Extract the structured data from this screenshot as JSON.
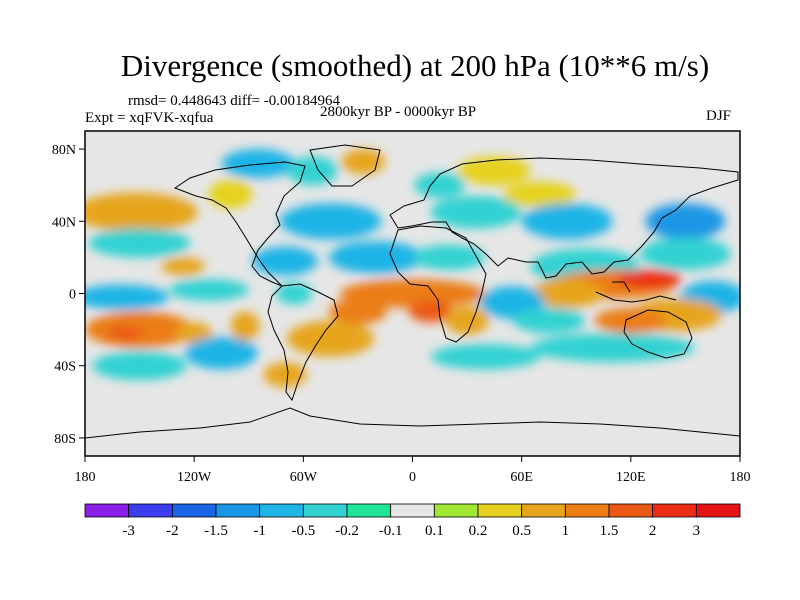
{
  "header": {
    "title": "Divergence (smoothed) at 200 hPa (10**6 m/s)",
    "stats": "rmsd= 0.448643 diff= -0.00184964",
    "period": "2800kyr BP - 0000kyr BP",
    "experiment": "Expt = xqFVK-xqfua",
    "season": "DJF"
  },
  "chart_data": {
    "type": "heatmap",
    "title": "Divergence (smoothed) at 200 hPa (10**6 m/s)",
    "x_ticks": [
      {
        "value": -180,
        "label": "180"
      },
      {
        "value": -120,
        "label": "120W"
      },
      {
        "value": -60,
        "label": "60W"
      },
      {
        "value": 0,
        "label": "0"
      },
      {
        "value": 60,
        "label": "60E"
      },
      {
        "value": 120,
        "label": "120E"
      },
      {
        "value": 180,
        "label": "180"
      }
    ],
    "y_ticks": [
      {
        "value": 80,
        "label": "80N"
      },
      {
        "value": 40,
        "label": "40N"
      },
      {
        "value": 0,
        "label": "0"
      },
      {
        "value": -40,
        "label": "40S"
      },
      {
        "value": -80,
        "label": "80S"
      }
    ],
    "xlim": [
      -180,
      180
    ],
    "ylim": [
      -90,
      90
    ],
    "colorbar": {
      "levels": [
        "-3",
        "-2",
        "-1.5",
        "-1",
        "-0.5",
        "-0.2",
        "-0.1",
        "0.1",
        "0.2",
        "0.5",
        "1",
        "1.5",
        "2",
        "3"
      ],
      "colors": [
        "#8a1ee6",
        "#3c3cf0",
        "#1a64e6",
        "#1a96e6",
        "#1eb4e6",
        "#32d2d2",
        "#1ee696",
        "#e6e6e6",
        "#a0e632",
        "#e6d21e",
        "#e6a51a",
        "#eb7d14",
        "#eb5a14",
        "#eb2d14",
        "#e61414"
      ]
    },
    "anomalies": [
      {
        "lon": -152,
        "lat": 45,
        "rx": 34,
        "ry": 11,
        "value": 0.7
      },
      {
        "lon": -150,
        "lat": 28,
        "rx": 28,
        "ry": 8,
        "value": -0.5
      },
      {
        "lon": -126,
        "lat": 15,
        "rx": 12,
        "ry": 5,
        "value": 0.6
      },
      {
        "lon": -160,
        "lat": -2,
        "rx": 26,
        "ry": 7,
        "value": -0.8
      },
      {
        "lon": -112,
        "lat": 2,
        "rx": 22,
        "ry": 6,
        "value": -0.5
      },
      {
        "lon": -150,
        "lat": -20,
        "rx": 30,
        "ry": 10,
        "value": 1.0
      },
      {
        "lon": -158,
        "lat": -22,
        "rx": 10,
        "ry": 4,
        "value": 1.6
      },
      {
        "lon": -150,
        "lat": -40,
        "rx": 26,
        "ry": 8,
        "value": -0.5
      },
      {
        "lon": -120,
        "lat": -22,
        "rx": 10,
        "ry": 6,
        "value": 0.8
      },
      {
        "lon": -105,
        "lat": -33,
        "rx": 20,
        "ry": 9,
        "value": -0.6
      },
      {
        "lon": -92,
        "lat": -18,
        "rx": 8,
        "ry": 8,
        "value": 0.5
      },
      {
        "lon": -70,
        "lat": -45,
        "rx": 12,
        "ry": 7,
        "value": 0.5
      },
      {
        "lon": -85,
        "lat": 72,
        "rx": 20,
        "ry": 8,
        "value": -0.6
      },
      {
        "lon": -100,
        "lat": 55,
        "rx": 12,
        "ry": 8,
        "value": 0.4
      },
      {
        "lon": -55,
        "lat": 68,
        "rx": 14,
        "ry": 8,
        "value": -0.5
      },
      {
        "lon": -27,
        "lat": 73,
        "rx": 12,
        "ry": 7,
        "value": 0.6
      },
      {
        "lon": -45,
        "lat": 40,
        "rx": 28,
        "ry": 10,
        "value": -0.8
      },
      {
        "lon": -70,
        "lat": 18,
        "rx": 18,
        "ry": 8,
        "value": -0.6
      },
      {
        "lon": -20,
        "lat": 20,
        "rx": 26,
        "ry": 9,
        "value": -0.9
      },
      {
        "lon": -65,
        "lat": 0,
        "rx": 10,
        "ry": 6,
        "value": -0.5
      },
      {
        "lon": 0,
        "lat": 0,
        "rx": 40,
        "ry": 8,
        "value": 1.1
      },
      {
        "lon": 10,
        "lat": -10,
        "rx": 12,
        "ry": 6,
        "value": 1.8
      },
      {
        "lon": -30,
        "lat": -10,
        "rx": 16,
        "ry": 7,
        "value": 1.2
      },
      {
        "lon": -45,
        "lat": -25,
        "rx": 24,
        "ry": 10,
        "value": 0.5
      },
      {
        "lon": 20,
        "lat": 20,
        "rx": 20,
        "ry": 7,
        "value": -0.5
      },
      {
        "lon": 35,
        "lat": 45,
        "rx": 25,
        "ry": 9,
        "value": -0.5
      },
      {
        "lon": 45,
        "lat": 68,
        "rx": 20,
        "ry": 8,
        "value": 0.4
      },
      {
        "lon": 15,
        "lat": 60,
        "rx": 14,
        "ry": 7,
        "value": -0.3
      },
      {
        "lon": 70,
        "lat": 55,
        "rx": 20,
        "ry": 7,
        "value": 0.3
      },
      {
        "lon": 85,
        "lat": 40,
        "rx": 25,
        "ry": 10,
        "value": -0.6
      },
      {
        "lon": 150,
        "lat": 40,
        "rx": 22,
        "ry": 10,
        "value": -1.2
      },
      {
        "lon": 95,
        "lat": 15,
        "rx": 30,
        "ry": 10,
        "value": -0.5
      },
      {
        "lon": 150,
        "lat": 22,
        "rx": 25,
        "ry": 9,
        "value": -0.4
      },
      {
        "lon": 110,
        "lat": 5,
        "rx": 35,
        "ry": 8,
        "value": 1.3
      },
      {
        "lon": 130,
        "lat": 8,
        "rx": 18,
        "ry": 5,
        "value": 2.0
      },
      {
        "lon": 85,
        "lat": 0,
        "rx": 20,
        "ry": 8,
        "value": 0.8
      },
      {
        "lon": 55,
        "lat": -5,
        "rx": 18,
        "ry": 9,
        "value": -0.7
      },
      {
        "lon": 75,
        "lat": -15,
        "rx": 20,
        "ry": 7,
        "value": -0.5
      },
      {
        "lon": 165,
        "lat": -2,
        "rx": 18,
        "ry": 9,
        "value": -0.8
      },
      {
        "lon": 145,
        "lat": -12,
        "rx": 25,
        "ry": 9,
        "value": 0.8
      },
      {
        "lon": 120,
        "lat": -15,
        "rx": 20,
        "ry": 7,
        "value": 1.0
      },
      {
        "lon": 110,
        "lat": -30,
        "rx": 45,
        "ry": 8,
        "value": -0.4
      },
      {
        "lon": 40,
        "lat": -35,
        "rx": 30,
        "ry": 7,
        "value": -0.3
      },
      {
        "lon": 30,
        "lat": -15,
        "rx": 12,
        "ry": 8,
        "value": 0.5
      }
    ]
  }
}
